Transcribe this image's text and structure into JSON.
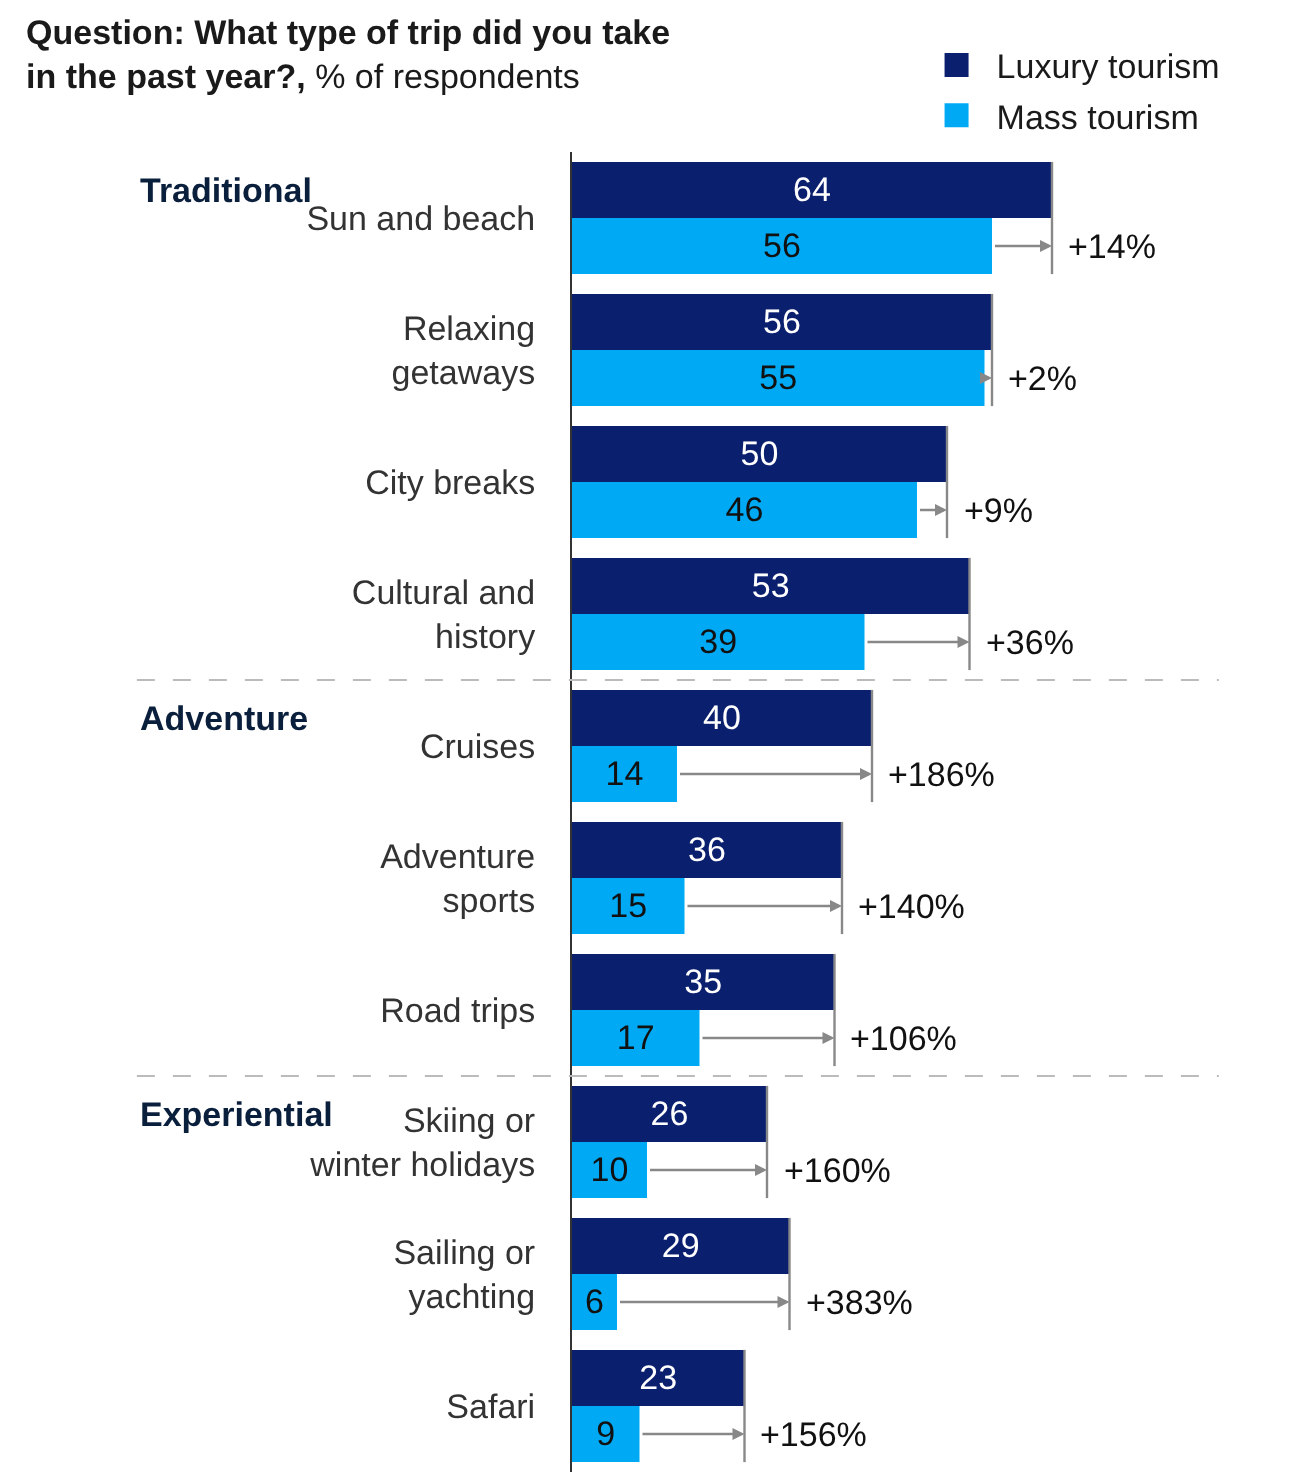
{
  "chart_data": {
    "type": "bar",
    "orientation": "horizontal",
    "title": "Question: What type of trip did you take in the past year?,",
    "subtitle": "% of respondents",
    "categories": [
      "Sun and beach",
      "Relaxing getaways",
      "City breaks",
      "Cultural and history",
      "Cruises",
      "Adventure sports",
      "Road trips",
      "Skiing or winter holidays",
      "Sailing or yachting",
      "Safari"
    ],
    "series": [
      {
        "name": "Luxury tourism",
        "color": "#0a1f6e",
        "values": [
          64,
          56,
          50,
          53,
          40,
          36,
          35,
          26,
          29,
          23
        ]
      },
      {
        "name": "Mass tourism",
        "color": "#00a9f4",
        "values": [
          56,
          55,
          46,
          39,
          14,
          15,
          17,
          10,
          6,
          9
        ]
      }
    ],
    "data_labels": true,
    "legend": "top right",
    "tick_labels": "y",
    "grid": false,
    "annotations": [
      "Traditional",
      "Adventure",
      "Experiential",
      {
        "text": "+14%",
        "x": 64,
        "y": "Sun and beach"
      },
      {
        "text": "+2%",
        "x": 56,
        "y": "Relaxing getaways"
      },
      {
        "text": "+9%",
        "x": 50,
        "y": "City breaks"
      },
      {
        "text": "+36%",
        "x": 53,
        "y": "Cultural and history"
      },
      {
        "text": "+186%",
        "x": 40,
        "y": "Cruises"
      },
      {
        "text": "+140%",
        "x": 36,
        "y": "Adventure sports"
      },
      {
        "text": "+106%",
        "x": 35,
        "y": "Road trips"
      },
      {
        "text": "+160%",
        "x": 26,
        "y": "Skiing or winter holidays"
      },
      {
        "text": "+383%",
        "x": 29,
        "y": "Sailing or yachting"
      },
      {
        "text": "+156%",
        "x": 23,
        "y": "Safari"
      }
    ]
  }
}
